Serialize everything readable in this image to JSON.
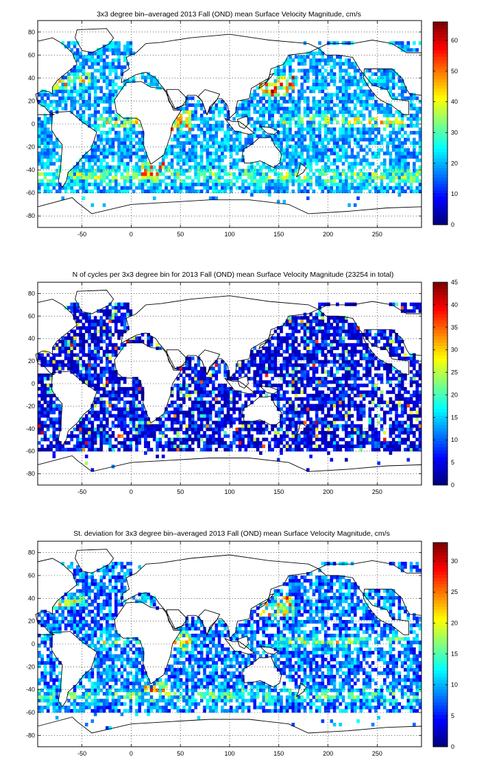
{
  "chart_data": [
    {
      "type": "heatmap",
      "title": "3x3 degree bin–averaged 2013 Fall (OND) mean Surface Velocity Magnitude, cm/s",
      "xlim": [
        -95,
        295
      ],
      "ylim": [
        -90,
        90
      ],
      "xticks": [
        -50,
        0,
        50,
        100,
        150,
        200,
        250
      ],
      "yticks": [
        80,
        60,
        40,
        20,
        0,
        -20,
        -40,
        -60,
        -80
      ],
      "colorbar": {
        "min": 0,
        "max": 66,
        "ticks": [
          0,
          10,
          20,
          30,
          40,
          50,
          60
        ],
        "colormap": "jet"
      },
      "grid": true,
      "bin_size_deg": 3,
      "field": "mean_velocity"
    },
    {
      "type": "heatmap",
      "title": "N of cycles per 3x3 degree bin for 2013 Fall (OND) mean Surface Velocity Magnitude (23254 in total)",
      "xlim": [
        -95,
        295
      ],
      "ylim": [
        -90,
        90
      ],
      "xticks": [
        -50,
        0,
        50,
        100,
        150,
        200,
        250
      ],
      "yticks": [
        80,
        60,
        40,
        20,
        0,
        -20,
        -40,
        -60,
        -80
      ],
      "colorbar": {
        "min": 0,
        "max": 45,
        "ticks": [
          0,
          5,
          10,
          15,
          20,
          25,
          30,
          35,
          40,
          45
        ],
        "colormap": "jet"
      },
      "grid": true,
      "bin_size_deg": 3,
      "field": "cycle_count"
    },
    {
      "type": "heatmap",
      "title": "St. deviation for 3x3 degree bin–averaged 2013 Fall (OND) mean Surface Velocity Magnitude, cm/s",
      "xlim": [
        -95,
        295
      ],
      "ylim": [
        -90,
        90
      ],
      "xticks": [
        -50,
        0,
        50,
        100,
        150,
        200,
        250
      ],
      "yticks": [
        80,
        60,
        40,
        20,
        0,
        -20,
        -40,
        -60,
        -80
      ],
      "colorbar": {
        "min": 0,
        "max": 33,
        "ticks": [
          0,
          5,
          10,
          15,
          20,
          25,
          30
        ],
        "colormap": "jet"
      },
      "grid": true,
      "bin_size_deg": 3,
      "field": "velocity_std"
    }
  ]
}
